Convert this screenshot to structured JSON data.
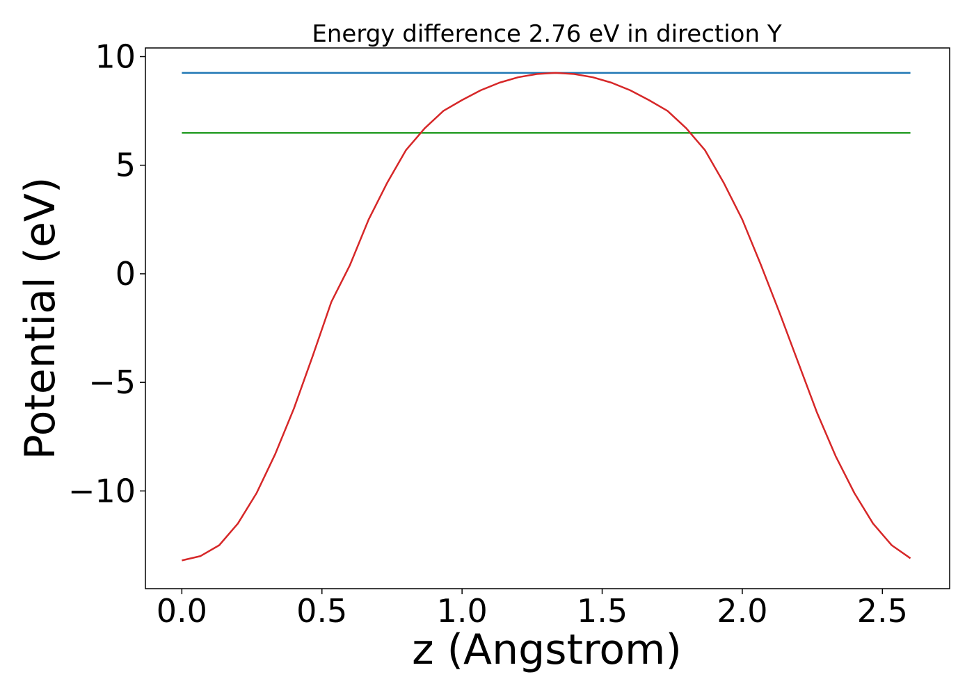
{
  "chart_data": {
    "type": "line",
    "title": "Energy difference 2.76 eV in direction Y",
    "xlabel": "z (Angstrom)",
    "ylabel": "Potential (eV)",
    "xlim": [
      -0.13,
      2.74
    ],
    "ylim": [
      -14.5,
      10.4
    ],
    "xticks": [
      0.0,
      0.5,
      1.0,
      1.5,
      2.0,
      2.5
    ],
    "xtick_labels": [
      "0.0",
      "0.5",
      "1.0",
      "1.5",
      "2.0",
      "2.5"
    ],
    "yticks": [
      -10,
      -5,
      0,
      5,
      10
    ],
    "ytick_labels": [
      "−10",
      "−5",
      "0",
      "5",
      "10"
    ],
    "grid": false,
    "colors": {
      "potential": "#d62728",
      "max_level": "#1f77b4",
      "min_level": "#2ca02c"
    },
    "series": [
      {
        "x": [
          0.0,
          0.0667,
          0.1333,
          0.2,
          0.2667,
          0.3333,
          0.4,
          0.4667,
          0.5333,
          0.6,
          0.6667,
          0.7333,
          0.8,
          0.8667,
          0.9333,
          1.0,
          1.0667,
          1.1333,
          1.2,
          1.2667,
          1.3333,
          1.4,
          1.4667,
          1.5333,
          1.6,
          1.6667,
          1.7333,
          1.8,
          1.8667,
          1.9333,
          2.0,
          2.0667,
          2.1333,
          2.2,
          2.2667,
          2.3333,
          2.4,
          2.4667,
          2.5333,
          2.6
        ],
        "y": [
          -13.2,
          -13.0,
          -12.5,
          -11.5,
          -10.1,
          -8.3,
          -6.2,
          -3.8,
          -1.3,
          0.4,
          2.5,
          4.2,
          5.7,
          6.7,
          7.5,
          8.0,
          8.45,
          8.8,
          9.05,
          9.2,
          9.25,
          9.2,
          9.05,
          8.8,
          8.45,
          8.0,
          7.5,
          6.7,
          5.7,
          4.2,
          2.5,
          0.4,
          -1.8,
          -4.1,
          -6.4,
          -8.4,
          -10.1,
          -11.5,
          -12.5,
          -13.1
        ]
      },
      {
        "x": [
          0.0,
          2.6
        ],
        "y": [
          9.25,
          9.25
        ]
      },
      {
        "x": [
          0.0,
          2.6
        ],
        "y": [
          6.49,
          6.49
        ]
      }
    ]
  }
}
